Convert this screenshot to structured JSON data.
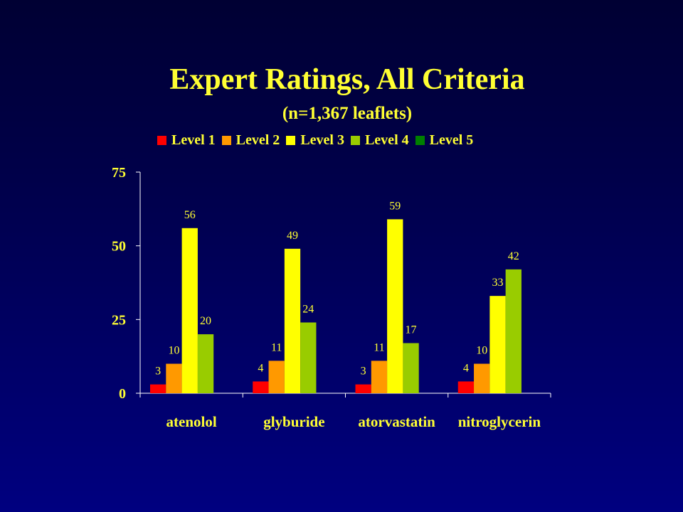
{
  "title": "Expert Ratings, All Criteria",
  "subtitle": "(n=1,367 leaflets)",
  "colors": {
    "Level 1": "#ff0000",
    "Level 2": "#ff9900",
    "Level 3": "#ffff00",
    "Level 4": "#99cc00",
    "Level 5": "#008000",
    "text": "#ffff33",
    "axis": "#ffffff"
  },
  "chart_data": {
    "type": "bar",
    "categories": [
      "atenolol",
      "glyburide",
      "atorvastatin",
      "nitroglycerin"
    ],
    "series": [
      {
        "name": "Level 1",
        "values": [
          3,
          4,
          3,
          4
        ]
      },
      {
        "name": "Level 2",
        "values": [
          10,
          11,
          11,
          10
        ]
      },
      {
        "name": "Level 3",
        "values": [
          56,
          49,
          59,
          33
        ]
      },
      {
        "name": "Level 4",
        "values": [
          20,
          24,
          17,
          42
        ]
      },
      {
        "name": "Level 5",
        "values": [
          null,
          null,
          null,
          null
        ]
      }
    ],
    "ylim": [
      0,
      75
    ],
    "yticks": [
      0,
      25,
      50,
      75
    ],
    "legend": "top",
    "grid": false
  }
}
